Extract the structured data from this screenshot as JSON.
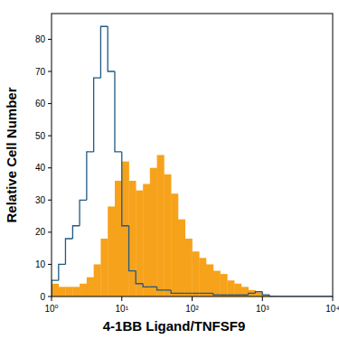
{
  "chart_data": {
    "type": "histogram",
    "x_label": "4-1BB Ligand/TNFSF9",
    "y_label": "Relative Cell Number",
    "log": "x",
    "bins": [
      1,
      1.26,
      1.58,
      2,
      2.51,
      3.16,
      3.98,
      5.01,
      6.31,
      7.94,
      10,
      12.6,
      15.8,
      20,
      25.1,
      31.6,
      39.8,
      50.1,
      63.1,
      79.4,
      100,
      126,
      158,
      200,
      251,
      316,
      398,
      501,
      631,
      794,
      1000,
      1260,
      1580,
      2000,
      2510,
      3160,
      3980,
      5010,
      6310,
      7940,
      10000
    ],
    "series": [
      {
        "type": "step",
        "color": "#1f5a85",
        "values": [
          5,
          10,
          18,
          22,
          30,
          45,
          68,
          84,
          70,
          45,
          22,
          8,
          4,
          3,
          3,
          2,
          2,
          1,
          1,
          1,
          1,
          1,
          1,
          0.5,
          0.5,
          0.5,
          0.5,
          0.5,
          1,
          1.5,
          0.5,
          0,
          0,
          0,
          0,
          0,
          0,
          0,
          0,
          0
        ]
      },
      {
        "type": "bar",
        "color": "#f7a21b",
        "values": [
          4,
          3,
          3,
          3,
          4,
          6,
          10,
          18,
          28,
          36,
          42,
          36,
          33,
          35,
          40,
          44,
          38,
          32,
          24,
          18,
          14,
          12,
          10,
          8,
          7,
          5,
          4,
          3,
          2,
          1.5,
          0.5,
          0,
          0,
          0,
          0,
          0,
          0,
          0,
          0,
          0
        ]
      }
    ],
    "xlim": [
      1,
      10000
    ],
    "xticks": [
      {
        "value": 1,
        "label": "10⁰"
      },
      {
        "value": 10,
        "label": "10¹"
      },
      {
        "value": 100,
        "label": "10²"
      },
      {
        "value": 1000,
        "label": "10³"
      },
      {
        "value": 10000,
        "label": "10⁴"
      }
    ],
    "ylim": [
      0,
      88
    ],
    "yticks": [
      0,
      10,
      20,
      30,
      40,
      50,
      60,
      70,
      80
    ]
  }
}
